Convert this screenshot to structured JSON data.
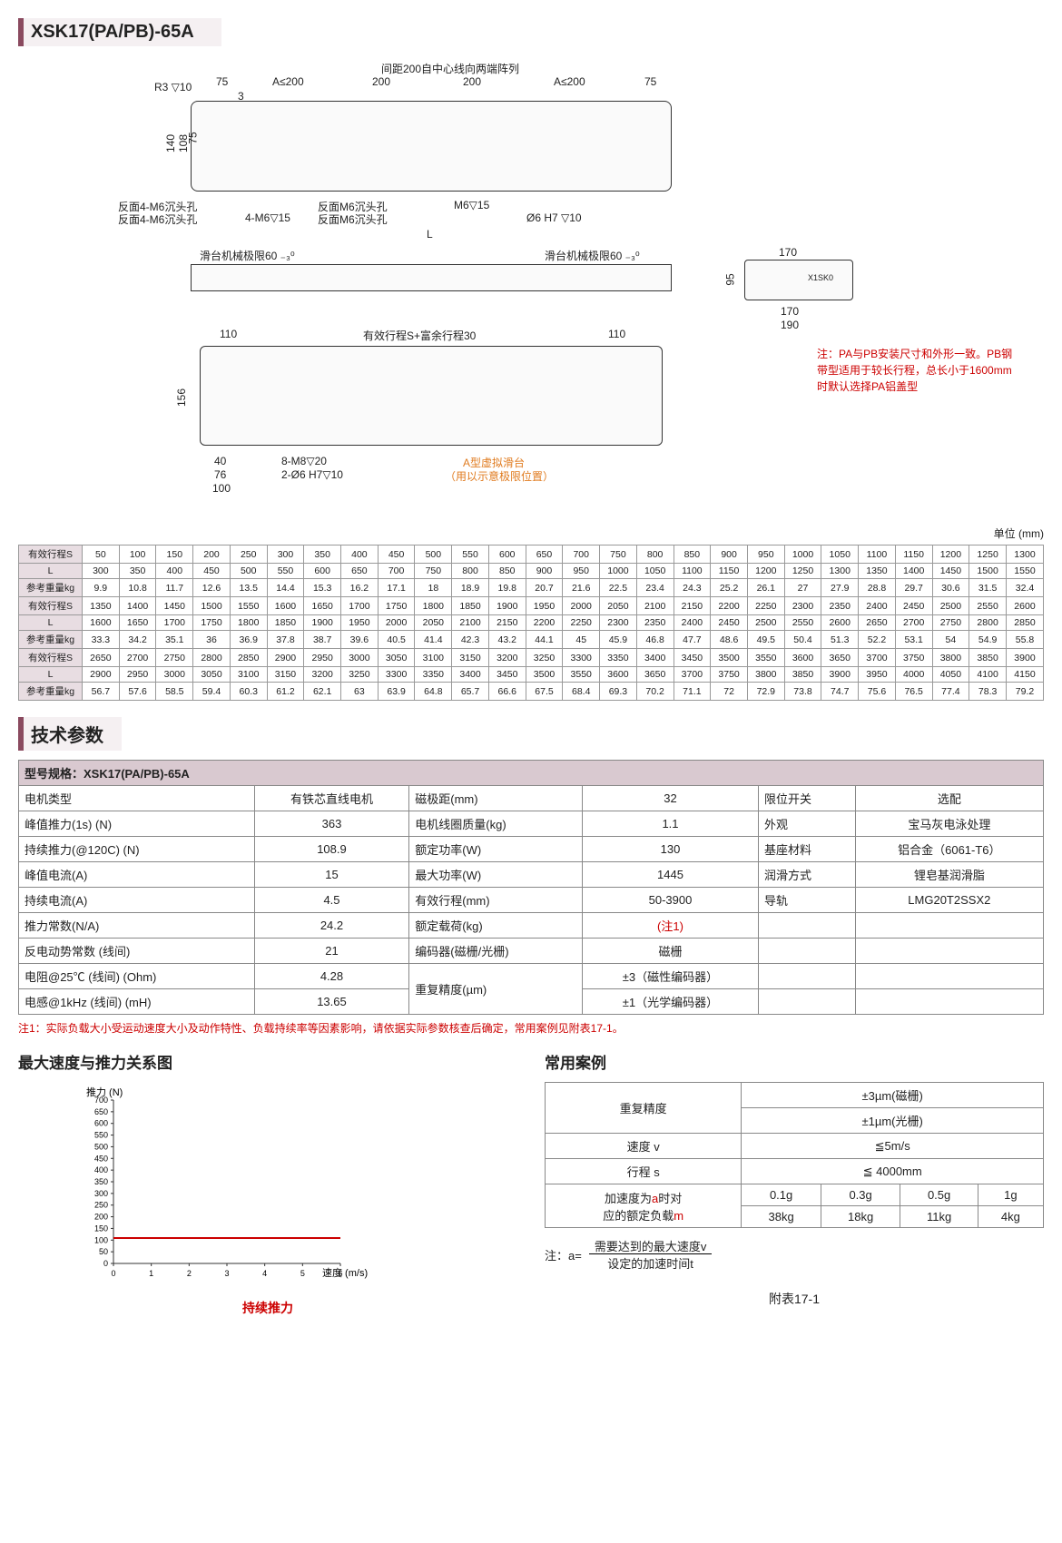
{
  "title": "XSK17(PA/PB)-65A",
  "unit": "单位   (mm)",
  "drawing": {
    "top_label": "间距200自中心线向两端阵列",
    "labels": {
      "r3": "R3 ▽10",
      "a200a": "A≤200",
      "d200a": "200",
      "d200b": "200",
      "a200b": "A≤200",
      "d75a": "75",
      "d75b": "75",
      "d3": "3",
      "d140": "140",
      "d108": "108",
      "d75c": "75",
      "bm6a": "反面4-M6沉头孔",
      "bm6b": "反面4-M6沉头孔",
      "m6d15": "4-M6▽15",
      "bm6c": "反面M6沉头孔",
      "bm6d": "反面M6沉头孔",
      "m6d15b": "M6▽15",
      "phi6": "Ø6 H7 ▽10",
      "L": "L",
      "lim1": "滑台机械极限60 ₋₃⁰",
      "lim2": "滑台机械极限60 ₋₃⁰",
      "d170": "170",
      "d170b": "170",
      "d190": "190",
      "d95": "95",
      "model": "X1SK0",
      "d110a": "110",
      "d110b": "110",
      "stroke": "有效行程S+富余行程30",
      "d156": "156",
      "d40": "40",
      "d76": "76",
      "d100": "100",
      "m8": "8-M8▽20",
      "phi6b": "2-Ø6 H7▽10",
      "virt": "A型虚拟滑台",
      "virt2": "（用以示意极限位置）"
    },
    "note": "注：PA与PB安装尺寸和外形一致。PB钢带型适用于较长行程，总长小于1600mm时默认选择PA铝盖型"
  },
  "dim_table": {
    "row_headers": [
      "有效行程S",
      "L",
      "参考重量kg"
    ],
    "blocks": [
      {
        "S": [
          "50",
          "100",
          "150",
          "200",
          "250",
          "300",
          "350",
          "400",
          "450",
          "500",
          "550",
          "600",
          "650",
          "700",
          "750",
          "800",
          "850",
          "900",
          "950",
          "1000",
          "1050",
          "1100",
          "1150",
          "1200",
          "1250",
          "1300"
        ],
        "L": [
          "300",
          "350",
          "400",
          "450",
          "500",
          "550",
          "600",
          "650",
          "700",
          "750",
          "800",
          "850",
          "900",
          "950",
          "1000",
          "1050",
          "1100",
          "1150",
          "1200",
          "1250",
          "1300",
          "1350",
          "1400",
          "1450",
          "1500",
          "1550"
        ],
        "W": [
          "9.9",
          "10.8",
          "11.7",
          "12.6",
          "13.5",
          "14.4",
          "15.3",
          "16.2",
          "17.1",
          "18",
          "18.9",
          "19.8",
          "20.7",
          "21.6",
          "22.5",
          "23.4",
          "24.3",
          "25.2",
          "26.1",
          "27",
          "27.9",
          "28.8",
          "29.7",
          "30.6",
          "31.5",
          "32.4"
        ]
      },
      {
        "S": [
          "1350",
          "1400",
          "1450",
          "1500",
          "1550",
          "1600",
          "1650",
          "1700",
          "1750",
          "1800",
          "1850",
          "1900",
          "1950",
          "2000",
          "2050",
          "2100",
          "2150",
          "2200",
          "2250",
          "2300",
          "2350",
          "2400",
          "2450",
          "2500",
          "2550",
          "2600"
        ],
        "L": [
          "1600",
          "1650",
          "1700",
          "1750",
          "1800",
          "1850",
          "1900",
          "1950",
          "2000",
          "2050",
          "2100",
          "2150",
          "2200",
          "2250",
          "2300",
          "2350",
          "2400",
          "2450",
          "2500",
          "2550",
          "2600",
          "2650",
          "2700",
          "2750",
          "2800",
          "2850"
        ],
        "W": [
          "33.3",
          "34.2",
          "35.1",
          "36",
          "36.9",
          "37.8",
          "38.7",
          "39.6",
          "40.5",
          "41.4",
          "42.3",
          "43.2",
          "44.1",
          "45",
          "45.9",
          "46.8",
          "47.7",
          "48.6",
          "49.5",
          "50.4",
          "51.3",
          "52.2",
          "53.1",
          "54",
          "54.9",
          "55.8"
        ]
      },
      {
        "S": [
          "2650",
          "2700",
          "2750",
          "2800",
          "2850",
          "2900",
          "2950",
          "3000",
          "3050",
          "3100",
          "3150",
          "3200",
          "3250",
          "3300",
          "3350",
          "3400",
          "3450",
          "3500",
          "3550",
          "3600",
          "3650",
          "3700",
          "3750",
          "3800",
          "3850",
          "3900"
        ],
        "L": [
          "2900",
          "2950",
          "3000",
          "3050",
          "3100",
          "3150",
          "3200",
          "3250",
          "3300",
          "3350",
          "3400",
          "3450",
          "3500",
          "3550",
          "3600",
          "3650",
          "3700",
          "3750",
          "3800",
          "3850",
          "3900",
          "3950",
          "4000",
          "4050",
          "4100",
          "4150"
        ],
        "W": [
          "56.7",
          "57.6",
          "58.5",
          "59.4",
          "60.3",
          "61.2",
          "62.1",
          "63",
          "63.9",
          "64.8",
          "65.7",
          "66.6",
          "67.5",
          "68.4",
          "69.3",
          "70.2",
          "71.1",
          "72",
          "72.9",
          "73.8",
          "74.7",
          "75.6",
          "76.5",
          "77.4",
          "78.3",
          "79.2"
        ]
      }
    ]
  },
  "section2": "技术参数",
  "specs": {
    "header": "型号规格：XSK17(PA/PB)-65A",
    "rows": [
      [
        "电机类型",
        "有铁芯直线电机",
        "磁极距(mm)",
        "32",
        "限位开关",
        "选配"
      ],
      [
        "峰值推力(1s) (N)",
        "363",
        "电机线圈质量(kg)",
        "1.1",
        "外观",
        "宝马灰电泳处理"
      ],
      [
        "持续推力(@120C) (N)",
        "108.9",
        "额定功率(W)",
        "130",
        "基座材料",
        "铝合金（6061-T6）"
      ],
      [
        "峰值电流(A)",
        "15",
        "最大功率(W)",
        "1445",
        "润滑方式",
        "锂皂基润滑脂"
      ],
      [
        "持续电流(A)",
        "4.5",
        "有效行程(mm)",
        "50-3900",
        "导轨",
        "LMG20T2SSX2"
      ],
      [
        "推力常数(N/A)",
        "24.2",
        "额定载荷(kg)",
        "(注1)",
        "",
        ""
      ],
      [
        "反电动势常数 (线间)",
        "21",
        "编码器(磁栅/光栅)",
        "磁栅",
        "",
        ""
      ],
      [
        "电阻@25℃ (线间) (Ohm)",
        "4.28",
        "重复精度(µm)",
        "±3（磁性编码器）",
        "",
        ""
      ],
      [
        "电感@1kHz (线间) (mH)",
        "13.65",
        "",
        "±1（光学编码器）",
        "",
        ""
      ]
    ]
  },
  "footnote1": "注1：实际负载大小受运动速度大小及动作特性、负载持续率等因素影响，请依据实际参数核查后确定，常用案例见附表17-1。",
  "chart_head": "最大速度与推力关系图",
  "cases_head": "常用案例",
  "chart": {
    "ylabel": "推力 (N)",
    "xlabel": "速度 (m/s)",
    "ymax": 700,
    "ystep": 50,
    "xticks": [
      "0",
      "1",
      "2",
      "3",
      "4",
      "5",
      "6"
    ],
    "line_y": 108.9,
    "line_color": "#c00",
    "legend": "持续推力"
  },
  "cases": {
    "rows": [
      [
        "重复精度",
        "±3µm(磁栅)"
      ],
      [
        "",
        "±1µm(光栅)"
      ],
      [
        "速度 v",
        "≦5m/s"
      ],
      [
        "行程 s",
        "≦ 4000mm"
      ]
    ],
    "accel_label": "加速度为a时对应的额定负载m",
    "accel_g": [
      "0.1g",
      "0.3g",
      "0.5g",
      "1g"
    ],
    "accel_m": [
      "38kg",
      "18kg",
      "11kg",
      "4kg"
    ],
    "formula_pre": "注：a=",
    "formula_top": "需要达到的最大速度v",
    "formula_bot": "设定的加速时间t"
  },
  "appendix": "附表17-1"
}
